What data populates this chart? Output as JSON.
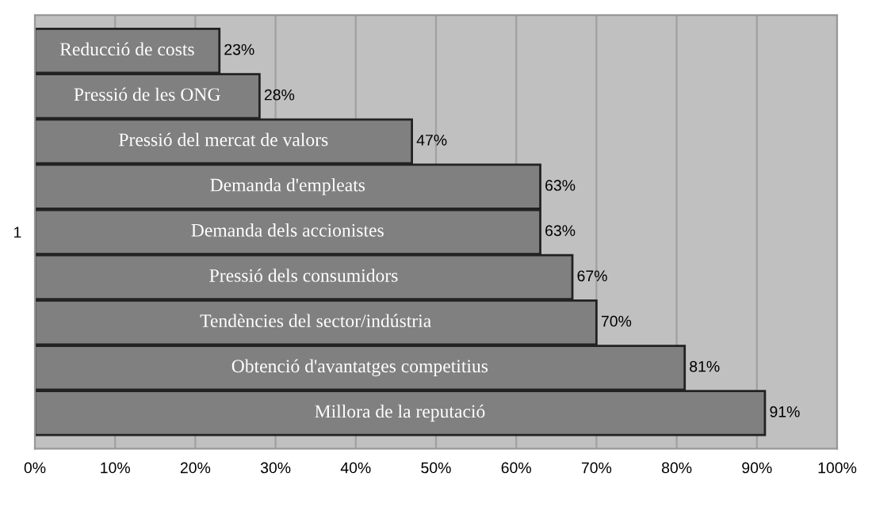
{
  "chart_data": {
    "type": "bar",
    "orientation": "horizontal",
    "categories": [
      "1"
    ],
    "series": [
      {
        "name": "Reducció de costs",
        "color": "#808080",
        "values": [
          23
        ],
        "value_labels": [
          "23%"
        ]
      },
      {
        "name": "Pressió de les ONG",
        "color": "#808080",
        "values": [
          28
        ],
        "value_labels": [
          "28%"
        ]
      },
      {
        "name": "Pressió del mercat de valors",
        "color": "#808080",
        "values": [
          47
        ],
        "value_labels": [
          "47%"
        ]
      },
      {
        "name": "Demanda d'empleats",
        "color": "#808080",
        "values": [
          63
        ],
        "value_labels": [
          "63%"
        ]
      },
      {
        "name": "Demanda dels accionistes",
        "color": "#808080",
        "values": [
          63
        ],
        "value_labels": [
          "63%"
        ]
      },
      {
        "name": "Pressió dels consumidors",
        "color": "#808080",
        "values": [
          67
        ],
        "value_labels": [
          "67%"
        ]
      },
      {
        "name": "Tendències del sector/indústria",
        "color": "#808080",
        "values": [
          70
        ],
        "value_labels": [
          "70%"
        ]
      },
      {
        "name": "Obtenció d'avantatges competitius",
        "color": "#808080",
        "values": [
          81
        ],
        "value_labels": [
          "81%"
        ]
      },
      {
        "name": "Millora de la reputació",
        "color": "#808080",
        "values": [
          91
        ],
        "value_labels": [
          "91%"
        ]
      }
    ],
    "xlim": [
      0,
      100
    ],
    "xticks": [
      {
        "value": 0,
        "label": "0%"
      },
      {
        "value": 10,
        "label": "10%"
      },
      {
        "value": 20,
        "label": "20%"
      },
      {
        "value": 30,
        "label": "30%"
      },
      {
        "value": 40,
        "label": "40%"
      },
      {
        "value": 50,
        "label": "50%"
      },
      {
        "value": 60,
        "label": "60%"
      },
      {
        "value": 70,
        "label": "70%"
      },
      {
        "value": 80,
        "label": "80%"
      },
      {
        "value": 90,
        "label": "90%"
      },
      {
        "value": 100,
        "label": "100%"
      }
    ],
    "grid": "x",
    "legend": false
  }
}
